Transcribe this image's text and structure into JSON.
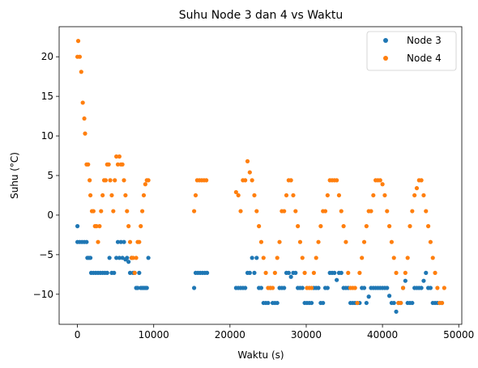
{
  "chart_data": {
    "type": "scatter",
    "title": "Suhu Node 3 dan 4 vs Waktu",
    "xlabel": "Waktu (s)",
    "ylabel": "Suhu (°C)",
    "xlim": [
      -2400,
      50400
    ],
    "ylim": [
      -13.8,
      23.8
    ],
    "xticks": [
      0,
      10000,
      20000,
      30000,
      40000,
      50000
    ],
    "yticks": [
      -10,
      -5,
      0,
      5,
      10,
      15,
      20
    ],
    "grid": false,
    "legend_position": "top-right",
    "series": [
      {
        "name": "Node 3",
        "color": "#1f77b4",
        "points": [
          [
            0,
            -1.4
          ],
          [
            0,
            -3.4
          ],
          [
            300,
            -3.4
          ],
          [
            600,
            -3.4
          ],
          [
            900,
            -3.4
          ],
          [
            1200,
            -3.4
          ],
          [
            1300,
            -5.4
          ],
          [
            1500,
            -5.4
          ],
          [
            1700,
            -5.4
          ],
          [
            1800,
            -7.3
          ],
          [
            2100,
            -7.3
          ],
          [
            2400,
            -7.3
          ],
          [
            2700,
            -7.3
          ],
          [
            3000,
            -7.3
          ],
          [
            3300,
            -7.3
          ],
          [
            3600,
            -7.3
          ],
          [
            3900,
            -7.3
          ],
          [
            4200,
            -5.4
          ],
          [
            4500,
            -7.3
          ],
          [
            4800,
            -7.3
          ],
          [
            5100,
            -5.4
          ],
          [
            5300,
            -3.4
          ],
          [
            5500,
            -5.4
          ],
          [
            5700,
            -3.4
          ],
          [
            5900,
            -5.4
          ],
          [
            6100,
            -3.4
          ],
          [
            6300,
            -5.6
          ],
          [
            6500,
            -5.4
          ],
          [
            6700,
            -5.9
          ],
          [
            6900,
            -7.3
          ],
          [
            7100,
            -5.4
          ],
          [
            7300,
            -7.3
          ],
          [
            7500,
            -7.3
          ],
          [
            7700,
            -9.2
          ],
          [
            7900,
            -9.2
          ],
          [
            8100,
            -7.3
          ],
          [
            8300,
            -9.2
          ],
          [
            8500,
            -9.2
          ],
          [
            8700,
            -9.2
          ],
          [
            8900,
            -9.2
          ],
          [
            9100,
            -9.2
          ],
          [
            9300,
            -5.4
          ],
          [
            15300,
            -9.2
          ],
          [
            15500,
            -7.3
          ],
          [
            15800,
            -7.3
          ],
          [
            16100,
            -7.3
          ],
          [
            16400,
            -7.3
          ],
          [
            16700,
            -7.3
          ],
          [
            17000,
            -7.3
          ],
          [
            20800,
            -9.2
          ],
          [
            21100,
            -9.2
          ],
          [
            21400,
            -9.2
          ],
          [
            21700,
            -9.2
          ],
          [
            22000,
            -9.2
          ],
          [
            22300,
            -7.3
          ],
          [
            22600,
            -7.3
          ],
          [
            22900,
            -5.4
          ],
          [
            23200,
            -7.3
          ],
          [
            23500,
            -5.4
          ],
          [
            23800,
            -9.2
          ],
          [
            24100,
            -9.2
          ],
          [
            24400,
            -11.1
          ],
          [
            24700,
            -11.1
          ],
          [
            25000,
            -11.1
          ],
          [
            25300,
            -9.2
          ],
          [
            25600,
            -11.1
          ],
          [
            25900,
            -11.1
          ],
          [
            26200,
            -11.1
          ],
          [
            26500,
            -9.2
          ],
          [
            26800,
            -9.2
          ],
          [
            27100,
            -9.2
          ],
          [
            27400,
            -7.3
          ],
          [
            27700,
            -7.3
          ],
          [
            28000,
            -7.8
          ],
          [
            28300,
            -7.3
          ],
          [
            28600,
            -7.3
          ],
          [
            28900,
            -9.2
          ],
          [
            29200,
            -9.2
          ],
          [
            29500,
            -9.2
          ],
          [
            29800,
            -11.1
          ],
          [
            30100,
            -11.1
          ],
          [
            30400,
            -11.1
          ],
          [
            30700,
            -11.1
          ],
          [
            31000,
            -9.2
          ],
          [
            31300,
            -9.2
          ],
          [
            31600,
            -9.2
          ],
          [
            31900,
            -11.1
          ],
          [
            32200,
            -11.1
          ],
          [
            32500,
            -9.2
          ],
          [
            32800,
            -9.2
          ],
          [
            33100,
            -7.3
          ],
          [
            33400,
            -7.3
          ],
          [
            33700,
            -7.3
          ],
          [
            34000,
            -8.2
          ],
          [
            34300,
            -7.3
          ],
          [
            34600,
            -7.3
          ],
          [
            34900,
            -9.2
          ],
          [
            35200,
            -9.2
          ],
          [
            35500,
            -9.2
          ],
          [
            35800,
            -11.1
          ],
          [
            36100,
            -11.1
          ],
          [
            36400,
            -11.1
          ],
          [
            36700,
            -11.1
          ],
          [
            37000,
            -11.1
          ],
          [
            37300,
            -9.2
          ],
          [
            37600,
            -9.2
          ],
          [
            37900,
            -11.1
          ],
          [
            38200,
            -10.3
          ],
          [
            38500,
            -9.2
          ],
          [
            38800,
            -9.2
          ],
          [
            39100,
            -9.2
          ],
          [
            39400,
            -9.2
          ],
          [
            39700,
            -9.2
          ],
          [
            40000,
            -9.2
          ],
          [
            40300,
            -9.2
          ],
          [
            40600,
            -9.2
          ],
          [
            40900,
            -10.2
          ],
          [
            41200,
            -11.1
          ],
          [
            41500,
            -11.1
          ],
          [
            41800,
            -12.2
          ],
          [
            42100,
            -11.1
          ],
          [
            42400,
            -11.1
          ],
          [
            42700,
            -9.2
          ],
          [
            43000,
            -8.3
          ],
          [
            43300,
            -11.1
          ],
          [
            43600,
            -11.1
          ],
          [
            43900,
            -11.1
          ],
          [
            44200,
            -9.2
          ],
          [
            44500,
            -9.2
          ],
          [
            44800,
            -9.2
          ],
          [
            45100,
            -9.2
          ],
          [
            45400,
            -8.3
          ],
          [
            45700,
            -7.3
          ],
          [
            46000,
            -9.2
          ],
          [
            46300,
            -9.2
          ],
          [
            46600,
            -11.1
          ],
          [
            46900,
            -11.1
          ],
          [
            47200,
            -11.1
          ],
          [
            47500,
            -11.1
          ],
          [
            47800,
            -11.1
          ]
        ]
      },
      {
        "name": "Node 4",
        "color": "#ff7f0e",
        "points": [
          [
            0,
            20.0
          ],
          [
            100,
            22.0
          ],
          [
            300,
            20.0
          ],
          [
            500,
            18.1
          ],
          [
            700,
            14.2
          ],
          [
            900,
            12.2
          ],
          [
            1000,
            10.3
          ],
          [
            1200,
            6.4
          ],
          [
            1400,
            6.4
          ],
          [
            1600,
            4.4
          ],
          [
            1700,
            2.5
          ],
          [
            1900,
            0.5
          ],
          [
            2100,
            0.5
          ],
          [
            2300,
            -1.4
          ],
          [
            2500,
            -1.4
          ],
          [
            2700,
            -3.4
          ],
          [
            2900,
            -1.4
          ],
          [
            3100,
            0.5
          ],
          [
            3300,
            2.5
          ],
          [
            3500,
            4.4
          ],
          [
            3700,
            4.4
          ],
          [
            3900,
            6.4
          ],
          [
            4100,
            6.4
          ],
          [
            4300,
            4.4
          ],
          [
            4500,
            2.5
          ],
          [
            4700,
            0.5
          ],
          [
            4900,
            4.4
          ],
          [
            5100,
            7.4
          ],
          [
            5300,
            6.4
          ],
          [
            5500,
            7.4
          ],
          [
            5700,
            6.4
          ],
          [
            5900,
            6.4
          ],
          [
            6100,
            4.4
          ],
          [
            6300,
            2.5
          ],
          [
            6500,
            0.5
          ],
          [
            6700,
            -1.4
          ],
          [
            6900,
            -3.4
          ],
          [
            7100,
            -5.4
          ],
          [
            7300,
            -5.4
          ],
          [
            7500,
            -7.3
          ],
          [
            7700,
            -5.4
          ],
          [
            7900,
            -3.4
          ],
          [
            8100,
            -3.4
          ],
          [
            8300,
            -1.4
          ],
          [
            8500,
            0.5
          ],
          [
            8700,
            2.5
          ],
          [
            8900,
            3.9
          ],
          [
            9100,
            4.4
          ],
          [
            9300,
            4.4
          ],
          [
            15300,
            0.5
          ],
          [
            15500,
            2.5
          ],
          [
            15700,
            4.4
          ],
          [
            16000,
            4.4
          ],
          [
            16300,
            4.4
          ],
          [
            16600,
            4.4
          ],
          [
            16900,
            4.4
          ],
          [
            20800,
            2.9
          ],
          [
            21100,
            2.5
          ],
          [
            21400,
            0.5
          ],
          [
            21700,
            4.4
          ],
          [
            22000,
            4.4
          ],
          [
            22300,
            6.8
          ],
          [
            22600,
            5.4
          ],
          [
            22900,
            4.4
          ],
          [
            23200,
            2.5
          ],
          [
            23500,
            0.5
          ],
          [
            23800,
            -1.4
          ],
          [
            24100,
            -3.4
          ],
          [
            24400,
            -5.4
          ],
          [
            24700,
            -7.3
          ],
          [
            25000,
            -9.2
          ],
          [
            25300,
            -9.2
          ],
          [
            25600,
            -9.2
          ],
          [
            25900,
            -7.3
          ],
          [
            26200,
            -5.4
          ],
          [
            26500,
            -3.4
          ],
          [
            26800,
            0.5
          ],
          [
            27100,
            0.5
          ],
          [
            27400,
            2.5
          ],
          [
            27700,
            4.4
          ],
          [
            28000,
            4.4
          ],
          [
            28300,
            2.5
          ],
          [
            28600,
            0.5
          ],
          [
            28900,
            -1.4
          ],
          [
            29200,
            -3.4
          ],
          [
            29500,
            -5.4
          ],
          [
            29800,
            -7.3
          ],
          [
            30100,
            -9.2
          ],
          [
            30400,
            -9.2
          ],
          [
            30700,
            -9.2
          ],
          [
            31000,
            -7.3
          ],
          [
            31300,
            -5.4
          ],
          [
            31600,
            -3.4
          ],
          [
            31900,
            -1.4
          ],
          [
            32200,
            0.5
          ],
          [
            32500,
            0.5
          ],
          [
            32800,
            2.5
          ],
          [
            33100,
            4.4
          ],
          [
            33400,
            4.4
          ],
          [
            33700,
            4.4
          ],
          [
            34000,
            4.4
          ],
          [
            34300,
            2.5
          ],
          [
            34600,
            0.5
          ],
          [
            34900,
            -1.4
          ],
          [
            35200,
            -3.4
          ],
          [
            35500,
            -7.3
          ],
          [
            35800,
            -9.2
          ],
          [
            36100,
            -9.2
          ],
          [
            36400,
            -9.2
          ],
          [
            36700,
            -11.1
          ],
          [
            37000,
            -7.3
          ],
          [
            37300,
            -5.4
          ],
          [
            37600,
            -3.4
          ],
          [
            37900,
            -1.4
          ],
          [
            38200,
            0.5
          ],
          [
            38500,
            0.5
          ],
          [
            38800,
            2.5
          ],
          [
            39100,
            4.4
          ],
          [
            39400,
            4.4
          ],
          [
            39700,
            4.4
          ],
          [
            40000,
            3.9
          ],
          [
            40300,
            2.5
          ],
          [
            40600,
            0.5
          ],
          [
            40900,
            -1.4
          ],
          [
            41200,
            -3.4
          ],
          [
            41500,
            -5.4
          ],
          [
            41800,
            -7.3
          ],
          [
            42100,
            -11.1
          ],
          [
            42400,
            -11.1
          ],
          [
            42700,
            -9.2
          ],
          [
            43000,
            -7.3
          ],
          [
            43300,
            -5.4
          ],
          [
            43600,
            -1.4
          ],
          [
            43900,
            0.5
          ],
          [
            44200,
            2.5
          ],
          [
            44500,
            3.4
          ],
          [
            44800,
            4.4
          ],
          [
            45100,
            4.4
          ],
          [
            45400,
            2.5
          ],
          [
            45700,
            0.5
          ],
          [
            46000,
            -1.4
          ],
          [
            46300,
            -3.4
          ],
          [
            46600,
            -5.4
          ],
          [
            46900,
            -7.3
          ],
          [
            47200,
            -9.2
          ],
          [
            47500,
            -11.1
          ],
          [
            47800,
            -11.1
          ],
          [
            48100,
            -9.2
          ]
        ]
      }
    ]
  }
}
